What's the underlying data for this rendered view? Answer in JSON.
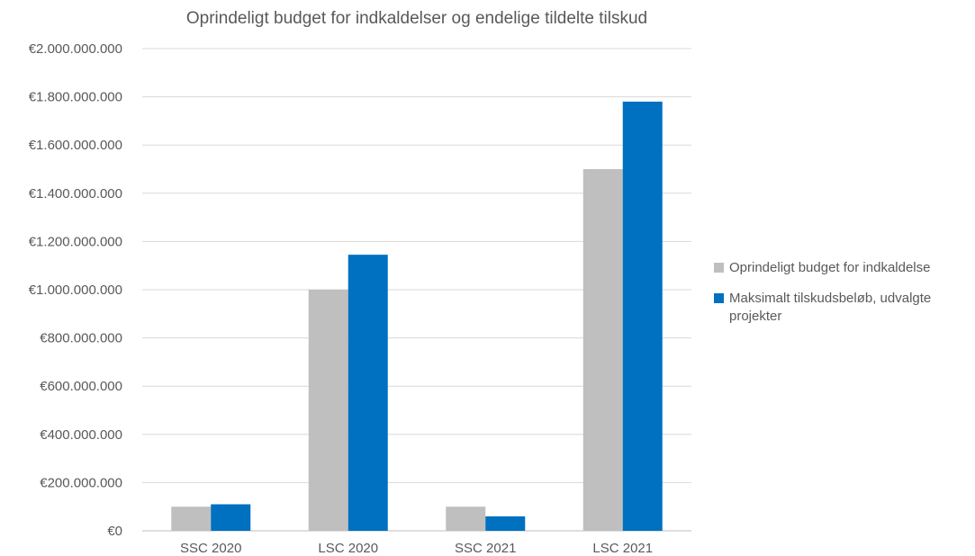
{
  "chart_data": {
    "type": "bar",
    "title": "Oprindeligt budget for indkaldelser og endelige tildelte tilskud",
    "categories": [
      "SSC 2020",
      "LSC 2020",
      "SSC 2021",
      "LSC 2021"
    ],
    "series": [
      {
        "name": "Oprindeligt budget for indkaldelse",
        "color": "#bfbfbf",
        "values": [
          100000000,
          1000000000,
          100000000,
          1500000000
        ]
      },
      {
        "name": "Maksimalt tilskudsbeløb, udvalgte projekter",
        "color": "#0070c0",
        "values": [
          110000000,
          1145000000,
          60000000,
          1780000000
        ]
      }
    ],
    "ylim": [
      0,
      2000000000
    ],
    "yticks": [
      0,
      200000000,
      400000000,
      600000000,
      800000000,
      1000000000,
      1200000000,
      1400000000,
      1600000000,
      1800000000,
      2000000000
    ],
    "ytick_labels": [
      "€0",
      "€200.000.000",
      "€400.000.000",
      "€600.000.000",
      "€800.000.000",
      "€1.000.000.000",
      "€1.200.000.000",
      "€1.400.000.000",
      "€1.600.000.000",
      "€1.800.000.000",
      "€2.000.000.000"
    ],
    "grid": true,
    "legend_position": "right",
    "xlabel": "",
    "ylabel": ""
  }
}
